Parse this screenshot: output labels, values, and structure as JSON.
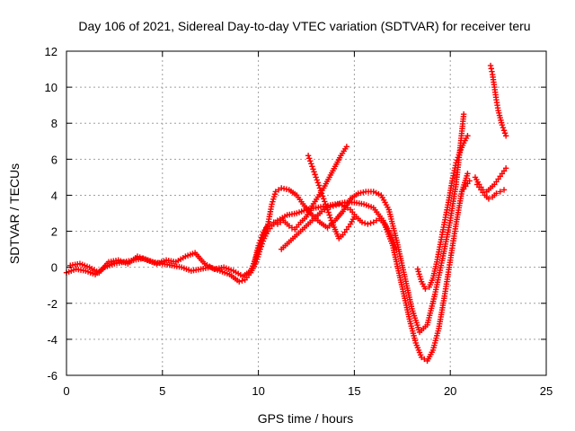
{
  "chart_data": {
    "type": "scatter",
    "title": "Day 106 of 2021, Sidereal Day-to-day VTEC variation (SDTVAR) for receiver teru",
    "xlabel": "GPS time / hours",
    "ylabel": "SDTVAR / TECUs",
    "xlim": [
      0,
      25
    ],
    "ylim": [
      -6,
      12
    ],
    "xticks": [
      0,
      5,
      10,
      15,
      20,
      25
    ],
    "yticks": [
      -6,
      -4,
      -2,
      0,
      2,
      4,
      6,
      8,
      10,
      12
    ],
    "xtick_labels": [
      "0",
      "5",
      "10",
      "15",
      "20",
      "25"
    ],
    "ytick_labels": [
      "-6",
      "-4",
      "-2",
      "0",
      "2",
      "4",
      "6",
      "8",
      "10",
      "12"
    ],
    "grid": true,
    "marker": "plus",
    "color": "#ff0000",
    "series": [
      {
        "x": [
          0.0,
          0.5,
          1.0,
          1.5,
          2.0,
          2.5,
          3.0,
          3.5,
          4.0,
          4.5,
          5.0,
          5.5,
          6.0,
          6.5,
          7.0,
          7.5,
          8.0,
          8.5,
          9.0,
          9.3,
          9.6,
          9.9,
          10.1,
          10.3,
          10.5,
          10.7,
          11.0,
          11.5,
          12.0,
          12.5,
          13.0,
          13.5,
          14.0,
          14.5,
          15.0,
          15.5,
          16.0,
          16.5,
          17.0,
          17.3,
          17.6,
          17.9,
          18.2,
          18.5,
          18.8,
          19.1,
          19.4,
          19.7,
          20.0,
          20.3,
          20.6,
          20.9
        ],
        "y": [
          -0.3,
          -0.1,
          -0.2,
          -0.4,
          0.0,
          0.2,
          0.3,
          0.4,
          0.5,
          0.3,
          0.2,
          0.1,
          0.0,
          -0.2,
          -0.1,
          0.0,
          -0.2,
          -0.4,
          -0.8,
          -0.7,
          -0.3,
          0.3,
          1.0,
          1.6,
          2.0,
          2.3,
          2.6,
          2.9,
          3.0,
          3.2,
          3.3,
          3.4,
          3.5,
          3.6,
          3.6,
          3.5,
          3.3,
          2.6,
          1.2,
          -0.2,
          -1.6,
          -3.0,
          -4.2,
          -5.0,
          -5.2,
          -4.6,
          -3.4,
          -1.6,
          0.4,
          2.4,
          4.2,
          5.2
        ]
      },
      {
        "x": [
          0.2,
          0.7,
          1.2,
          1.7,
          2.2,
          2.7,
          3.2,
          3.7,
          4.2,
          4.7,
          5.2,
          5.7,
          6.2,
          6.7,
          7.2,
          7.7,
          8.2,
          8.7,
          9.2,
          9.6,
          9.9,
          10.2,
          10.5,
          10.7,
          10.9,
          11.2,
          11.6,
          12.0,
          12.4,
          12.8,
          13.2,
          13.6,
          14.0,
          14.4,
          14.8,
          15.2,
          15.6,
          16.0,
          16.4,
          16.8,
          17.2,
          17.6,
          18.0,
          18.4,
          18.8,
          19.2,
          19.6,
          20.0,
          20.3,
          20.5,
          20.7
        ],
        "y": [
          0.1,
          0.2,
          0.0,
          -0.3,
          0.3,
          0.4,
          0.2,
          0.6,
          0.4,
          0.2,
          0.4,
          0.3,
          0.6,
          0.8,
          0.2,
          -0.1,
          0.0,
          -0.2,
          -0.5,
          -0.2,
          0.6,
          1.6,
          2.4,
          3.5,
          4.2,
          4.4,
          4.3,
          4.0,
          3.4,
          2.9,
          2.5,
          2.2,
          2.6,
          3.1,
          3.8,
          4.1,
          4.2,
          4.2,
          4.0,
          3.2,
          1.5,
          -0.4,
          -2.3,
          -3.6,
          -3.2,
          -1.5,
          0.5,
          2.6,
          4.6,
          6.5,
          8.5
        ]
      },
      {
        "x": [
          9.8,
          10.0,
          10.2,
          10.4,
          10.6,
          10.8,
          11.0,
          11.3,
          11.6,
          11.9,
          12.2,
          12.5,
          12.8,
          13.1,
          13.4,
          13.7,
          14.0,
          14.3,
          14.6
        ],
        "y": [
          0.3,
          1.2,
          1.8,
          2.2,
          2.4,
          2.5,
          2.4,
          2.6,
          2.3,
          2.1,
          2.5,
          2.8,
          3.4,
          3.9,
          4.4,
          5.0,
          5.6,
          6.2,
          6.7
        ]
      },
      {
        "x": [
          12.6,
          12.8,
          13.0,
          13.2,
          13.4,
          13.6,
          13.8,
          14.0,
          14.2,
          14.4,
          14.6,
          14.8,
          15.0
        ],
        "y": [
          6.2,
          5.6,
          5.0,
          4.4,
          3.8,
          3.2,
          2.6,
          2.1,
          1.6,
          1.8,
          2.1,
          2.4,
          2.8
        ]
      },
      {
        "x": [
          11.2,
          11.5,
          11.8,
          12.1,
          12.4,
          12.7,
          13.0,
          13.3,
          13.6,
          13.9,
          14.2,
          14.5,
          14.8,
          15.1,
          15.4,
          15.7,
          16.0,
          16.3,
          16.6,
          16.9,
          17.2
        ],
        "y": [
          1.0,
          1.3,
          1.6,
          1.9,
          2.2,
          2.5,
          2.8,
          3.1,
          3.3,
          3.4,
          3.5,
          3.4,
          3.2,
          2.8,
          2.5,
          2.4,
          2.5,
          2.7,
          2.4,
          1.8,
          1.0
        ]
      },
      {
        "x": [
          18.3,
          18.5,
          18.7,
          18.9,
          19.1,
          19.3,
          19.5,
          19.7,
          19.9,
          20.1,
          20.3,
          20.5,
          20.7,
          20.9
        ],
        "y": [
          -0.1,
          -0.8,
          -1.2,
          -1.1,
          -0.6,
          0.3,
          1.4,
          2.5,
          3.6,
          4.8,
          5.8,
          6.4,
          6.9,
          7.3
        ]
      },
      {
        "x": [
          21.3,
          21.5,
          21.7,
          21.9,
          22.1,
          22.3,
          22.5,
          22.7,
          22.9
        ],
        "y": [
          5.0,
          4.6,
          4.3,
          4.2,
          4.4,
          4.6,
          4.9,
          5.2,
          5.5
        ]
      },
      {
        "x": [
          21.4,
          21.6,
          21.8,
          22.0,
          22.2,
          22.4,
          22.6,
          22.8
        ],
        "y": [
          4.6,
          4.3,
          4.0,
          3.8,
          3.9,
          4.1,
          4.2,
          4.3
        ]
      },
      {
        "x": [
          22.1,
          22.2,
          22.3,
          22.4,
          22.5,
          22.6,
          22.7,
          22.8,
          22.9
        ],
        "y": [
          11.2,
          10.7,
          10.0,
          9.3,
          8.7,
          8.3,
          7.9,
          7.6,
          7.3
        ]
      },
      {
        "x": [
          20.6,
          20.8,
          21.0
        ],
        "y": [
          4.2,
          4.5,
          4.8
        ]
      }
    ]
  }
}
